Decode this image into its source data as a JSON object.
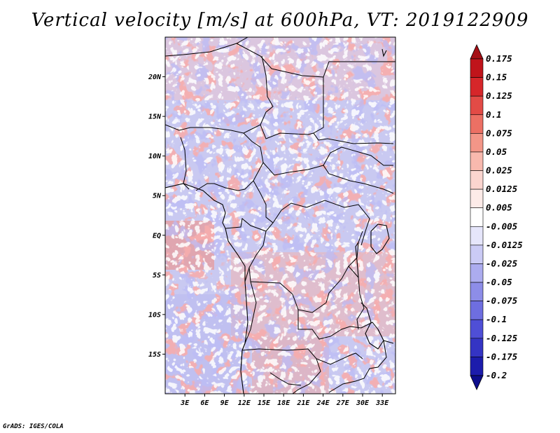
{
  "title": "Vertical velocity [m/s] at 600hPa, VT: 2019122909",
  "credit": "GrADS: IGES/COLA",
  "map": {
    "lat_labels": [
      "20N",
      "15N",
      "10N",
      "5N",
      "EQ",
      "5S",
      "10S",
      "15S"
    ],
    "lon_labels": [
      "3E",
      "6E",
      "9E",
      "12E",
      "15E",
      "18E",
      "21E",
      "24E",
      "27E",
      "30E",
      "33E"
    ],
    "lat_values": [
      20,
      15,
      10,
      5,
      0,
      -5,
      -10,
      -15
    ],
    "lon_values": [
      3,
      6,
      9,
      12,
      15,
      18,
      21,
      24,
      27,
      30,
      33
    ],
    "lon_range": [
      0,
      35
    ],
    "lat_range": [
      -20,
      25
    ]
  },
  "colorbar": {
    "labels": [
      "0.175",
      "0.15",
      "0.125",
      "0.1",
      "0.075",
      "0.05",
      "0.025",
      "0.0125",
      "0.005",
      "-0.005",
      "-0.0125",
      "-0.025",
      "-0.05",
      "-0.075",
      "-0.1",
      "-0.125",
      "-0.175",
      "-0.2"
    ],
    "colors": [
      "#a50f15",
      "#c0141b",
      "#d6262a",
      "#e24b46",
      "#ec7064",
      "#f39688",
      "#f8b9ae",
      "#fbd5cf",
      "#fdebe8",
      "#ffffff",
      "#e6e6fb",
      "#cbcbf5",
      "#acacef",
      "#8d8de8",
      "#6e6ee0",
      "#4f4fd6",
      "#3434c4",
      "#1c1cac",
      "#0d0d8c"
    ]
  }
}
